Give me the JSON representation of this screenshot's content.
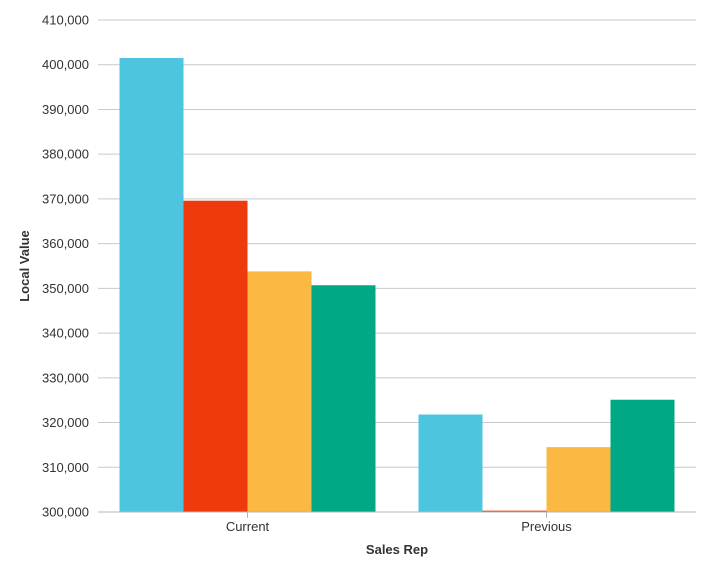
{
  "chart_data": {
    "type": "bar",
    "categories": [
      "Current",
      "Previous"
    ],
    "series": [
      {
        "color": "#4ec5df",
        "values": [
          401500,
          321800
        ]
      },
      {
        "color": "#ee3a0c",
        "values": [
          369600,
          300300
        ]
      },
      {
        "color": "#fbb843",
        "values": [
          353800,
          314500
        ]
      },
      {
        "color": "#00a885",
        "values": [
          350700,
          325100
        ]
      }
    ],
    "title": "",
    "xlabel": "Sales Rep",
    "ylabel": "Local Value",
    "ylim": [
      300000,
      410000
    ],
    "yticks": [
      "300,000",
      "310,000",
      "320,000",
      "330,000",
      "340,000",
      "350,000",
      "360,000",
      "370,000",
      "380,000",
      "390,000",
      "400,000",
      "410,000"
    ],
    "tick_values": [
      300000,
      310000,
      320000,
      330000,
      340000,
      350000,
      360000,
      370000,
      380000,
      390000,
      400000,
      410000
    ],
    "grid": true,
    "legend": "none"
  }
}
